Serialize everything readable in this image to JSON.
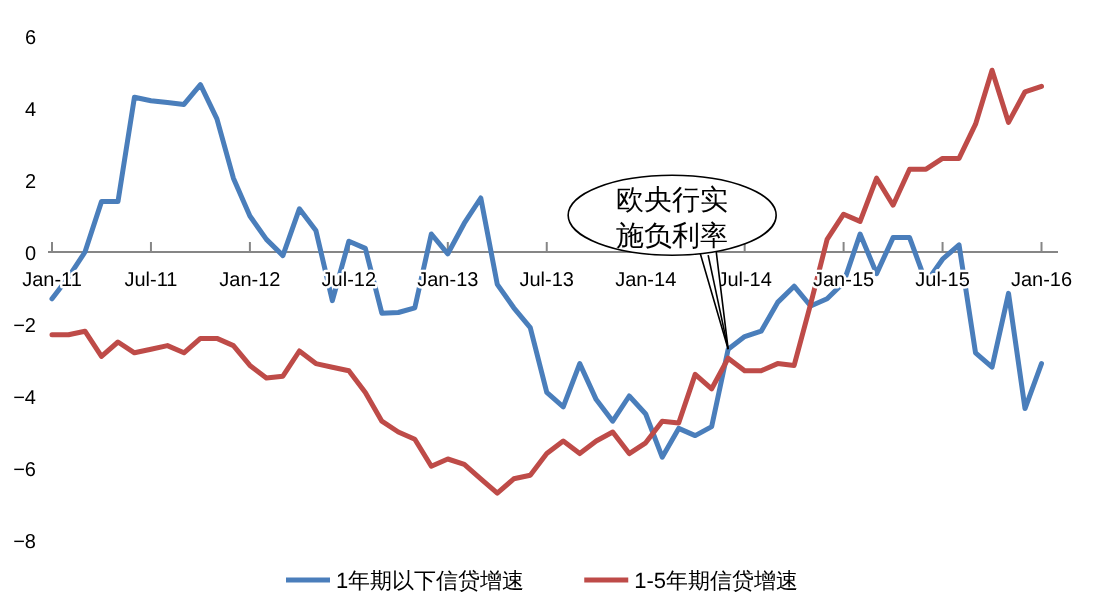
{
  "chart_data": {
    "type": "line",
    "x": [
      "2011-01",
      "2011-02",
      "2011-03",
      "2011-04",
      "2011-05",
      "2011-06",
      "2011-07",
      "2011-08",
      "2011-09",
      "2011-10",
      "2011-11",
      "2011-12",
      "2012-01",
      "2012-02",
      "2012-03",
      "2012-04",
      "2012-05",
      "2012-06",
      "2012-07",
      "2012-08",
      "2012-09",
      "2012-10",
      "2012-11",
      "2012-12",
      "2013-01",
      "2013-02",
      "2013-03",
      "2013-04",
      "2013-05",
      "2013-06",
      "2013-07",
      "2013-08",
      "2013-09",
      "2013-10",
      "2013-11",
      "2013-12",
      "2014-01",
      "2014-02",
      "2014-03",
      "2014-04",
      "2014-05",
      "2014-06",
      "2014-07",
      "2014-08",
      "2014-09",
      "2014-10",
      "2014-11",
      "2014-12",
      "2015-01",
      "2015-02",
      "2015-03",
      "2015-04",
      "2015-05",
      "2015-06",
      "2015-07",
      "2015-08",
      "2015-09",
      "2015-10",
      "2015-11",
      "2015-12",
      "2016-01"
    ],
    "series": [
      {
        "name": "1年期以下信贷增速",
        "color": "#4a7ebb",
        "values": [
          -1.3,
          -0.7,
          0.0,
          1.4,
          1.4,
          4.3,
          4.2,
          4.15,
          4.1,
          4.65,
          3.7,
          2.05,
          1.0,
          0.35,
          -0.1,
          1.2,
          0.6,
          -1.35,
          0.3,
          0.1,
          -1.7,
          -1.68,
          -1.55,
          0.5,
          -0.05,
          0.8,
          1.5,
          -0.9,
          -1.55,
          -2.1,
          -3.9,
          -4.3,
          -3.1,
          -4.1,
          -4.7,
          -4.0,
          -4.5,
          -5.7,
          -4.9,
          -5.1,
          -4.85,
          -2.7,
          -2.35,
          -2.2,
          -1.4,
          -0.95,
          -1.5,
          -1.3,
          -0.85,
          0.5,
          -0.6,
          0.4,
          0.4,
          -0.85,
          -0.2,
          0.2,
          -2.8,
          -3.2,
          -1.15,
          -4.35,
          -3.1
        ]
      },
      {
        "name": "1-5年期信贷增速",
        "color": "#be4b48",
        "values": [
          -2.3,
          -2.3,
          -2.2,
          -2.9,
          -2.5,
          -2.8,
          -2.7,
          -2.6,
          -2.8,
          -2.4,
          -2.4,
          -2.6,
          -3.15,
          -3.5,
          -3.45,
          -2.75,
          -3.1,
          -3.2,
          -3.3,
          -3.9,
          -4.7,
          -5.0,
          -5.2,
          -5.95,
          -5.75,
          -5.9,
          -6.3,
          -6.7,
          -6.3,
          -6.2,
          -5.6,
          -5.25,
          -5.6,
          -5.25,
          -5.0,
          -5.6,
          -5.3,
          -4.7,
          -4.75,
          -3.4,
          -3.8,
          -2.95,
          -3.3,
          -3.3,
          -3.1,
          -3.15,
          -1.45,
          0.35,
          1.05,
          0.85,
          2.05,
          1.3,
          2.3,
          2.3,
          2.6,
          2.6,
          3.55,
          5.05,
          3.6,
          4.45,
          4.6
        ]
      }
    ],
    "xlim": [
      "2011-01",
      "2016-02"
    ],
    "xticks": [
      {
        "value": "2011-01",
        "label": "Jan-11"
      },
      {
        "value": "2011-07",
        "label": "Jul-11"
      },
      {
        "value": "2012-01",
        "label": "Jan-12"
      },
      {
        "value": "2012-07",
        "label": "Jul-12"
      },
      {
        "value": "2013-01",
        "label": "Jan-13"
      },
      {
        "value": "2013-07",
        "label": "Jul-13"
      },
      {
        "value": "2014-01",
        "label": "Jan-14"
      },
      {
        "value": "2014-07",
        "label": "Jul-14"
      },
      {
        "value": "2015-01",
        "label": "Jan-15"
      },
      {
        "value": "2015-07",
        "label": "Jul-15"
      },
      {
        "value": "2016-01",
        "label": "Jan-16"
      }
    ],
    "ylim": [
      -8,
      6
    ],
    "yticks": [
      -8,
      -6,
      -4,
      -2,
      0,
      2,
      4,
      6
    ],
    "annotations": [
      {
        "text": "欧央行实施负利率",
        "x": "2014-06",
        "y": -2.7
      }
    ],
    "legend": "bottom",
    "grid": false,
    "marker": "none",
    "line_style": "solid"
  }
}
